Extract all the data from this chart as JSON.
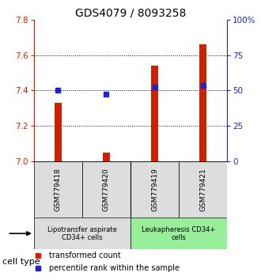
{
  "title": "GDS4079 / 8093258",
  "samples": [
    "GSM779418",
    "GSM779420",
    "GSM779419",
    "GSM779421"
  ],
  "red_values": [
    7.33,
    7.05,
    7.54,
    7.66
  ],
  "blue_values": [
    7.4,
    7.38,
    7.42,
    7.43
  ],
  "y_min": 7.0,
  "y_max": 7.8,
  "y_ticks": [
    7.0,
    7.2,
    7.4,
    7.6,
    7.8
  ],
  "right_y_ticks": [
    0,
    25,
    50,
    75,
    100
  ],
  "right_y_labels": [
    "0",
    "25",
    "50",
    "75",
    "100%"
  ],
  "grid_lines": [
    7.2,
    7.4,
    7.6
  ],
  "bar_color": "#cc2200",
  "square_color": "#2222cc",
  "group1_label": "Lipotransfer aspirate\nCD34+ cells",
  "group2_label": "Leukapheresis CD34+\ncells",
  "group1_color": "#dddddd",
  "group2_color": "#99ee99",
  "cell_type_label": "cell type",
  "legend_red": "transformed count",
  "legend_blue": "percentile rank within the sample",
  "title_fontsize": 10,
  "tick_fontsize": 7.5,
  "sample_fontsize": 6.5,
  "group_fontsize": 6,
  "legend_fontsize": 7,
  "bar_width": 0.15,
  "x_positions": [
    0.5,
    1.5,
    2.5,
    3.5
  ],
  "x_lim": [
    0,
    4
  ]
}
